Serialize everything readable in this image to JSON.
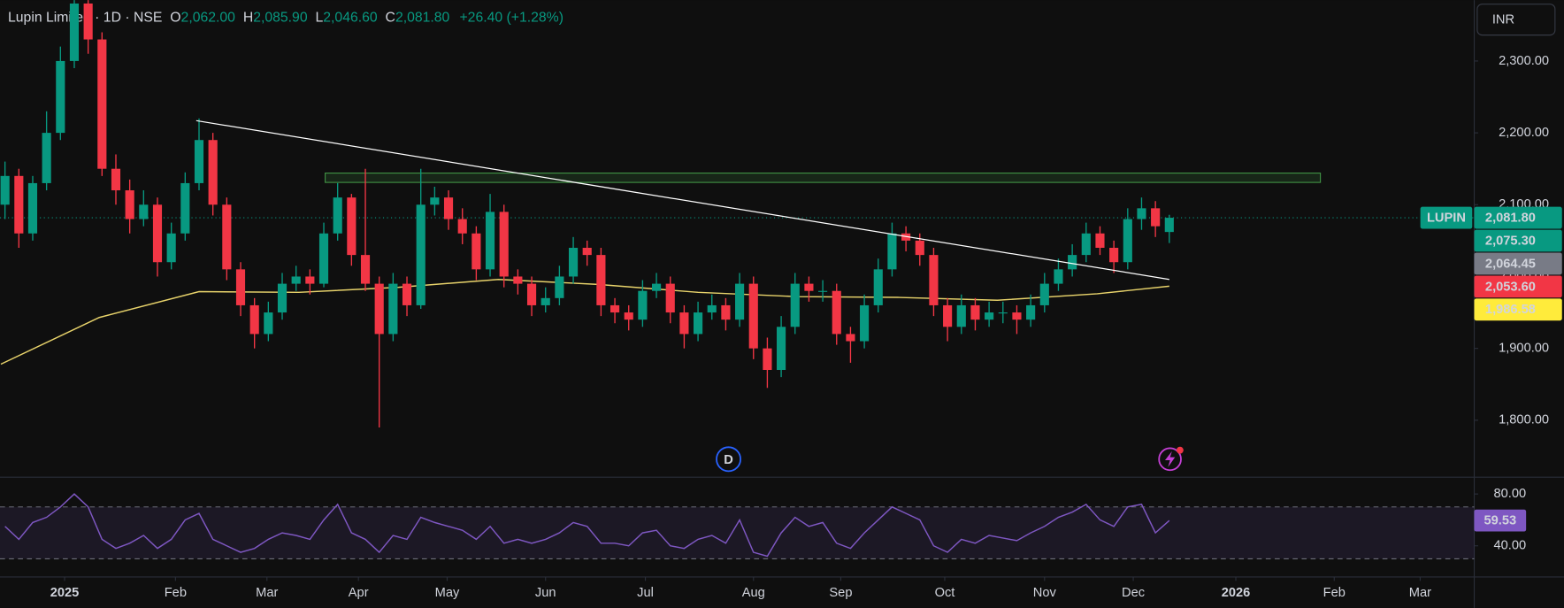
{
  "chart_data": [
    {
      "type": "candlestick",
      "title": "Lupin Limited · 1D · NSE",
      "currency": "INR",
      "ohlc": {
        "names": [
          "O",
          "H",
          "L",
          "C"
        ],
        "values": [
          2062,
          2085.9,
          2046.6,
          2081.8
        ],
        "value_labels": [
          "2,062.00",
          "2,085.90",
          "2,046.60",
          "2,081.80"
        ]
      },
      "change": {
        "values": [
          26.4,
          1.28
        ],
        "value_labels": [
          "+26.40",
          "(+1.28%)"
        ]
      },
      "xlim": [
        -0.36,
        106
      ],
      "xticks": [
        {
          "value": 4.3,
          "label": "2025"
        },
        {
          "value": 12.3,
          "label": "Feb"
        },
        {
          "value": 18.9,
          "label": "Mar"
        },
        {
          "value": 25.5,
          "label": "Apr"
        },
        {
          "value": 31.9,
          "label": "May"
        },
        {
          "value": 39,
          "label": "Jun"
        },
        {
          "value": 46.2,
          "label": "Jul"
        },
        {
          "value": 54,
          "label": "Aug"
        },
        {
          "value": 60.3,
          "label": "Sep"
        },
        {
          "value": 67.8,
          "label": "Oct"
        },
        {
          "value": 75,
          "label": "Nov"
        },
        {
          "value": 81.4,
          "label": "Dec"
        },
        {
          "value": 88.8,
          "label": "2026"
        },
        {
          "value": 95.9,
          "label": "Feb"
        },
        {
          "value": 102.1,
          "label": "Mar"
        }
      ],
      "ylim": [
        1720.8,
        2384.7
      ],
      "yticks": [
        {
          "value": 1800,
          "label": "1,800.00"
        },
        {
          "value": 1900,
          "label": "1,900.00"
        },
        {
          "value": 2000,
          "label": "2,000.00"
        },
        {
          "value": 2100,
          "label": "2,100.00"
        },
        {
          "value": 2200,
          "label": "2,200.00"
        },
        {
          "value": 2300,
          "label": "2,300.00"
        }
      ],
      "x": [
        0,
        1,
        2,
        3,
        4,
        5,
        6,
        7,
        8,
        9,
        10,
        11,
        12,
        13,
        14,
        15,
        16,
        17,
        18,
        19,
        20,
        21,
        22,
        23,
        24,
        25,
        26,
        27,
        28,
        29,
        30,
        31,
        32,
        33,
        34,
        35,
        36,
        37,
        38,
        39,
        40,
        41,
        42,
        43,
        44,
        45,
        46,
        47,
        48,
        49,
        50,
        51,
        52,
        53,
        54,
        55,
        56,
        57,
        58,
        59,
        60,
        61,
        62,
        63,
        64,
        65,
        66,
        67,
        68,
        69,
        70,
        71,
        72,
        73,
        74,
        75,
        76,
        77,
        78,
        79,
        80,
        81,
        82,
        83,
        84
      ],
      "series": [
        {
          "name": "LUPIN",
          "up_color": "#089981",
          "down_color": "#f23645",
          "open": [
            2100,
            2140,
            2060,
            2130,
            2200,
            2300,
            2380,
            2330,
            2150,
            2120,
            2080,
            2100,
            2020,
            2060,
            2130,
            2190,
            2100,
            2010,
            1960,
            1920,
            1950,
            1990,
            2000,
            1990,
            2060,
            2110,
            2030,
            1990,
            1920,
            1990,
            1960,
            2100,
            2110,
            2080,
            2060,
            2010,
            2090,
            2000,
            1990,
            1960,
            1970,
            2000,
            2040,
            2030,
            1960,
            1950,
            1940,
            1980,
            1990,
            1950,
            1920,
            1950,
            1960,
            1940,
            1990,
            1900,
            1870,
            1930,
            1990,
            1980,
            1980,
            1920,
            1910,
            1960,
            2010,
            2060,
            2050,
            2030,
            1960,
            1930,
            1960,
            1940,
            1950,
            1950,
            1940,
            1960,
            1990,
            2010,
            2030,
            2060,
            2040,
            2020,
            2080,
            2095,
            2062
          ],
          "high": [
            2160,
            2150,
            2140,
            2230,
            2320,
            2420,
            2400,
            2340,
            2170,
            2135,
            2120,
            2110,
            2075,
            2145,
            2220,
            2200,
            2110,
            2020,
            1970,
            1965,
            2005,
            2015,
            2010,
            2075,
            2130,
            2115,
            2150,
            2000,
            2005,
            2000,
            2150,
            2125,
            2120,
            2095,
            2070,
            2115,
            2100,
            2010,
            2000,
            1985,
            2015,
            2055,
            2050,
            2040,
            1970,
            1960,
            1995,
            2005,
            2000,
            1960,
            1965,
            1975,
            1970,
            2005,
            2000,
            1915,
            1945,
            2005,
            2000,
            1995,
            1990,
            1930,
            1975,
            2025,
            2075,
            2070,
            2060,
            2040,
            1970,
            1975,
            1970,
            1965,
            1965,
            1960,
            1975,
            2005,
            2025,
            2045,
            2075,
            2070,
            2050,
            2095,
            2110,
            2105,
            2085.9
          ],
          "low": [
            2080,
            2040,
            2050,
            2120,
            2190,
            2290,
            2310,
            2140,
            2100,
            2060,
            2070,
            2000,
            2010,
            2050,
            2120,
            2085,
            1995,
            1945,
            1900,
            1910,
            1940,
            1980,
            1975,
            1985,
            2050,
            2015,
            1980,
            1790,
            1910,
            1945,
            1955,
            2085,
            2065,
            2045,
            1995,
            2000,
            1985,
            1975,
            1945,
            1950,
            1960,
            1990,
            2015,
            1945,
            1935,
            1925,
            1930,
            1970,
            1935,
            1900,
            1910,
            1940,
            1925,
            1930,
            1885,
            1845,
            1860,
            1920,
            1965,
            1965,
            1905,
            1880,
            1900,
            1950,
            2000,
            2035,
            2015,
            1945,
            1910,
            1920,
            1925,
            1930,
            1935,
            1920,
            1930,
            1950,
            1980,
            2000,
            2020,
            2030,
            2005,
            2010,
            2065,
            2055,
            2046.6
          ],
          "close": [
            2140,
            2060,
            2130,
            2200,
            2300,
            2380,
            2330,
            2150,
            2120,
            2080,
            2100,
            2020,
            2060,
            2130,
            2190,
            2100,
            2010,
            1960,
            1920,
            1950,
            1990,
            2000,
            1990,
            2060,
            2110,
            2030,
            1990,
            1920,
            1990,
            1960,
            2100,
            2110,
            2080,
            2060,
            2010,
            2090,
            2000,
            1990,
            1960,
            1970,
            2000,
            2040,
            2030,
            1960,
            1950,
            1940,
            1980,
            1990,
            1950,
            1920,
            1950,
            1960,
            1940,
            1990,
            1900,
            1870,
            1930,
            1990,
            1980,
            1980,
            1920,
            1910,
            1960,
            2010,
            2060,
            2050,
            2030,
            1960,
            1930,
            1960,
            1940,
            1950,
            1950,
            1940,
            1960,
            1990,
            2010,
            2030,
            2060,
            2040,
            2020,
            2080,
            2095,
            2070,
            2081.8
          ]
        }
      ],
      "ma": {
        "color": "#e8d36b",
        "x": [
          -0.3,
          6.8,
          14.0,
          21.2,
          28.4,
          35.6,
          42.8,
          50.0,
          57.2,
          64.4,
          71.6,
          78.8,
          84
        ],
        "values": [
          1878,
          1943,
          1979,
          1978,
          1985,
          1996,
          1989,
          1978,
          1972,
          1971,
          1967,
          1976,
          1986.58
        ]
      },
      "trendline": {
        "color": "#ffffff",
        "x": [
          13.8,
          84
        ],
        "values": [
          2217,
          1996
        ]
      },
      "zone": {
        "color": "#4caf50",
        "x": [
          23.1,
          94.9
        ],
        "values": [
          2144,
          2131
        ]
      },
      "price_tags": [
        {
          "value": 2081.8,
          "label": "2,081.80",
          "color": "#089981"
        },
        {
          "value": 2075.3,
          "label": "2,075.30",
          "color": "#089981"
        },
        {
          "value": 2064.45,
          "label": "2,064.45",
          "color": "#787b86"
        },
        {
          "value": 2053.6,
          "label": "2,053.60",
          "color": "#f23645"
        },
        {
          "value": 1986.58,
          "label": "1,986.58",
          "color": "#ffeb3b"
        }
      ],
      "events": [
        {
          "x": 52.2,
          "label": "D"
        }
      ]
    },
    {
      "type": "line",
      "color": "#7e57c2",
      "ylim": [
        16,
        93
      ],
      "band": [
        30,
        70
      ],
      "yticks": [
        {
          "value": 40,
          "label": "40.00"
        },
        {
          "value": 80,
          "label": "80.00"
        }
      ],
      "values": [
        55,
        45,
        58,
        62,
        70,
        80,
        70,
        45,
        38,
        42,
        48,
        38,
        45,
        60,
        65,
        45,
        40,
        35,
        38,
        45,
        50,
        48,
        45,
        60,
        72,
        50,
        45,
        35,
        48,
        45,
        62,
        58,
        55,
        52,
        45,
        55,
        42,
        45,
        42,
        45,
        50,
        58,
        55,
        42,
        42,
        40,
        50,
        52,
        40,
        38,
        45,
        48,
        42,
        60,
        35,
        32,
        50,
        62,
        55,
        58,
        42,
        38,
        50,
        60,
        70,
        65,
        60,
        40,
        35,
        45,
        42,
        48,
        46,
        44,
        50,
        55,
        62,
        66,
        72,
        60,
        55,
        70,
        72,
        50,
        59.53
      ]
    }
  ]
}
